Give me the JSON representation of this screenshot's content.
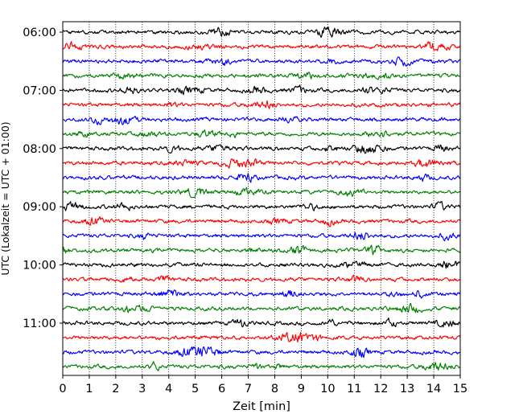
{
  "chart_data": {
    "type": "line",
    "title": "",
    "xlabel": "Zeit  [min]",
    "ylabel": "UTC (Lokalzeit = UTC + 01:00)",
    "xlim": [
      0,
      15
    ],
    "x_ticks": [
      0,
      1,
      2,
      3,
      4,
      5,
      6,
      7,
      8,
      9,
      10,
      11,
      12,
      13,
      14,
      15
    ],
    "x_tick_labels": [
      "0",
      "1",
      "2",
      "3",
      "4",
      "5",
      "6",
      "7",
      "8",
      "9",
      "10",
      "11",
      "12",
      "13",
      "14",
      "15"
    ],
    "y_tick_labels": [
      "06:00",
      "07:00",
      "08:00",
      "09:00",
      "10:00",
      "11:00"
    ],
    "y_tick_rows": [
      0,
      4,
      8,
      12,
      16,
      20
    ],
    "grid": "vertical dotted",
    "row_interval_minutes": 15,
    "series_colors": [
      "#000000",
      "#ff0000",
      "#0000ff",
      "#007f00"
    ],
    "series": [
      {
        "start": "06:00",
        "color": "#000000"
      },
      {
        "start": "06:15",
        "color": "#ff0000"
      },
      {
        "start": "06:30",
        "color": "#0000ff"
      },
      {
        "start": "06:45",
        "color": "#007f00"
      },
      {
        "start": "07:00",
        "color": "#000000"
      },
      {
        "start": "07:15",
        "color": "#ff0000"
      },
      {
        "start": "07:30",
        "color": "#0000ff"
      },
      {
        "start": "07:45",
        "color": "#007f00"
      },
      {
        "start": "08:00",
        "color": "#000000"
      },
      {
        "start": "08:15",
        "color": "#ff0000"
      },
      {
        "start": "08:30",
        "color": "#0000ff"
      },
      {
        "start": "08:45",
        "color": "#007f00"
      },
      {
        "start": "09:00",
        "color": "#000000"
      },
      {
        "start": "09:15",
        "color": "#ff0000"
      },
      {
        "start": "09:30",
        "color": "#0000ff"
      },
      {
        "start": "09:45",
        "color": "#007f00"
      },
      {
        "start": "10:00",
        "color": "#000000"
      },
      {
        "start": "10:15",
        "color": "#ff0000"
      },
      {
        "start": "10:30",
        "color": "#0000ff"
      },
      {
        "start": "10:45",
        "color": "#007f00"
      },
      {
        "start": "11:00",
        "color": "#000000"
      },
      {
        "start": "11:15",
        "color": "#ff0000"
      },
      {
        "start": "11:30",
        "color": "#0000ff"
      },
      {
        "start": "11:45",
        "color": "#007f00"
      }
    ]
  }
}
